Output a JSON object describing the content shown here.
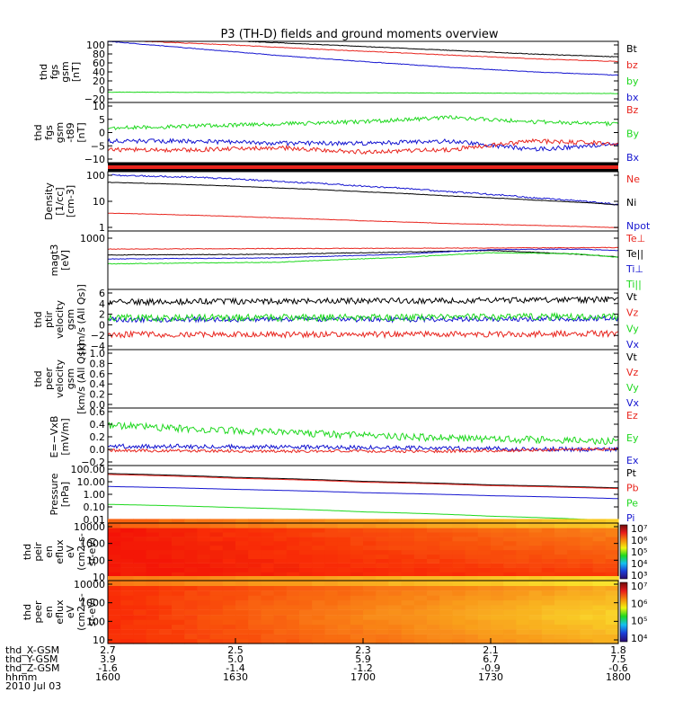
{
  "chart_data": {
    "type": "line",
    "title": "P3 (TH-D) fields and ground moments overview",
    "time_axis": {
      "ticks": [
        "1600",
        "1630",
        "1700",
        "1730",
        "1800"
      ],
      "range": [
        "1600",
        "1800"
      ],
      "date": "2010 Jul 03",
      "rows": [
        {
          "label": "thd_X-GSM",
          "values": [
            "2.7",
            "2.5",
            "2.3",
            "2.1",
            "1.8"
          ]
        },
        {
          "label": "thd_Y-GSM",
          "values": [
            "3.9",
            "5.0",
            "5.9",
            "6.7",
            "7.5"
          ]
        },
        {
          "label": "thd_Z-GSM",
          "values": [
            "-1.6",
            "-1.4",
            "-1.2",
            "-0.9",
            "-0.6"
          ]
        },
        {
          "label": "hhmm",
          "values": [
            "1600",
            "1630",
            "1700",
            "1730",
            "1800"
          ]
        }
      ]
    },
    "panels": [
      {
        "ylabel": [
          "thd",
          "fgs",
          "gsm",
          "[nT]"
        ],
        "scale": "linear",
        "ylim": [
          -25,
          105
        ],
        "yticks": [
          "100",
          "80",
          "60",
          "40",
          "20",
          "0",
          "−20"
        ],
        "grid": false,
        "legend": [
          {
            "name": "Bt",
            "color": "#000000"
          },
          {
            "name": "bz",
            "color": "#e8251e"
          },
          {
            "name": "by",
            "color": "#1ed81e"
          },
          {
            "name": "bx",
            "color": "#1515d0"
          }
        ],
        "series": [
          {
            "name": "Bt",
            "color": "#000000",
            "x": [
              0,
              25,
              50,
              75,
              100,
              120
            ],
            "y": [
              116,
              108,
              98,
              88,
              78,
              72
            ],
            "noise": 0.6
          },
          {
            "name": "bz",
            "color": "#e8251e",
            "x": [
              0,
              25,
              50,
              75,
              100,
              120
            ],
            "y": [
              108,
              99,
              88,
              78,
              68,
              62
            ],
            "noise": 0.6
          },
          {
            "name": "by",
            "color": "#1ed81e",
            "x": [
              0,
              60,
              120
            ],
            "y": [
              -3,
              -4.5,
              -6
            ],
            "noise": 0.4
          },
          {
            "name": "bx",
            "color": "#1515d0",
            "x": [
              0,
              20,
              40,
              60,
              80,
              100,
              120
            ],
            "y": [
              105,
              90,
              75,
              62,
              50,
              40,
              33
            ],
            "noise": 0.6
          }
        ]
      },
      {
        "ylabel": [
          "thd",
          "fgs",
          "gsm",
          "-t89",
          "[nT]"
        ],
        "scale": "linear",
        "ylim": [
          -13,
          15
        ],
        "yticks": [
          "10",
          "5",
          "0",
          "−5",
          "−10"
        ],
        "grid": false,
        "legend": [
          {
            "name": "Bz",
            "color": "#e8251e"
          },
          {
            "name": "By",
            "color": "#1ed81e"
          },
          {
            "name": "Bx",
            "color": "#1515d0"
          }
        ],
        "series": [
          {
            "name": "By",
            "color": "#1ed81e",
            "x": [
              0,
              20,
              40,
              60,
              80,
              100,
              120
            ],
            "y": [
              3,
              4,
              5,
              6,
              8,
              6,
              5
            ],
            "noise": 0.9
          },
          {
            "name": "Bx",
            "color": "#1515d0",
            "x": [
              0,
              20,
              40,
              60,
              80,
              100,
              120
            ],
            "y": [
              -3,
              -3,
              -4,
              -4,
              -3,
              -7,
              -4
            ],
            "noise": 1.0
          },
          {
            "name": "Bz",
            "color": "#e8251e",
            "x": [
              0,
              20,
              40,
              60,
              80,
              100,
              120
            ],
            "y": [
              -7,
              -7,
              -6,
              -8,
              -7,
              -3,
              -4
            ],
            "noise": 1.0
          }
        ]
      },
      {
        "ylabel": [
          "Density",
          "[1/cc]",
          "[cm-3]"
        ],
        "scale": "log",
        "ylim": [
          0.2,
          300
        ],
        "yticks": [
          "100",
          "10",
          "1"
        ],
        "grid": false,
        "legend": [
          {
            "name": "Ne",
            "color": "#e8251e"
          },
          {
            "name": "Ni",
            "color": "#000000"
          },
          {
            "name": "Npot",
            "color": "#1515d0"
          }
        ],
        "series": [
          {
            "name": "Npot",
            "color": "#1515d0",
            "x": [
              0,
              20,
              40,
              60,
              80,
              100,
              120
            ],
            "y": [
              200,
              150,
              90,
              50,
              25,
              12,
              5
            ],
            "noise": 0.04
          },
          {
            "name": "Ni",
            "color": "#000000",
            "x": [
              0,
              20,
              40,
              60,
              80,
              100,
              120
            ],
            "y": [
              80,
              60,
              40,
              25,
              15,
              9,
              5
            ],
            "noise": 0.01
          },
          {
            "name": "Ne",
            "color": "#e8251e",
            "x": [
              0,
              20,
              40,
              60,
              80,
              100,
              120
            ],
            "y": [
              1.8,
              1.4,
              1.0,
              0.7,
              0.5,
              0.4,
              0.3
            ],
            "noise": 0.01
          }
        ]
      },
      {
        "ylabel": [
          "magt3",
          "[eV]"
        ],
        "scale": "log",
        "ylim": [
          20,
          2000
        ],
        "yticks": [
          "1000"
        ],
        "grid": false,
        "legend": [
          {
            "name": "Te⊥",
            "color": "#e8251e"
          },
          {
            "name": "Te||",
            "color": "#000000"
          },
          {
            "name": "Ti⊥",
            "color": "#1515d0"
          },
          {
            "name": "Ti||",
            "color": "#1ed81e"
          }
        ],
        "series": [
          {
            "name": "Te⊥",
            "color": "#e8251e",
            "x": [
              0,
              40,
              80,
              120
            ],
            "y": [
              480,
              500,
              520,
              540
            ],
            "noise": 0.01
          },
          {
            "name": "Te||",
            "color": "#000000",
            "x": [
              0,
              40,
              70,
              90,
              110,
              120
            ],
            "y": [
              300,
              320,
              380,
              430,
              320,
              260
            ],
            "noise": 0.01
          },
          {
            "name": "Ti⊥",
            "color": "#1515d0",
            "x": [
              0,
              40,
              70,
              90,
              110,
              120
            ],
            "y": [
              220,
              240,
              320,
              460,
              480,
              430
            ],
            "noise": 0.01
          },
          {
            "name": "Ti||",
            "color": "#1ed81e",
            "x": [
              0,
              40,
              70,
              90,
              110,
              120
            ],
            "y": [
              150,
              170,
              250,
              360,
              330,
              250
            ],
            "noise": 0.01
          }
        ]
      },
      {
        "ylabel": [
          "thd",
          "ptir",
          "velocity",
          "gsm",
          "[km/s (All Qs)]"
        ],
        "scale": "linear",
        "ylim": [
          -6,
          6
        ],
        "yticks": [
          "6",
          "4",
          "2",
          "0",
          "−2",
          "−4"
        ],
        "grid": false,
        "legend": [
          {
            "name": "Vt",
            "color": "#000000"
          },
          {
            "name": "Vz",
            "color": "#e8251e"
          },
          {
            "name": "Vy",
            "color": "#1ed81e"
          },
          {
            "name": "Vx",
            "color": "#1515d0"
          }
        ],
        "series": [
          {
            "name": "Vt",
            "color": "#000000",
            "x": [
              0,
              60,
              120
            ],
            "y": [
              3.5,
              3.7,
              4.0
            ],
            "noise": 0.6
          },
          {
            "name": "Vx",
            "color": "#1515d0",
            "x": [
              0,
              60,
              120
            ],
            "y": [
              0,
              0,
              0.2
            ],
            "noise": 0.5
          },
          {
            "name": "Vy",
            "color": "#1ed81e",
            "x": [
              0,
              60,
              120
            ],
            "y": [
              0.3,
              0.4,
              0.6
            ],
            "noise": 0.7
          },
          {
            "name": "Vz",
            "color": "#e8251e",
            "x": [
              0,
              60,
              120
            ],
            "y": [
              -3.0,
              -3.0,
              -2.8
            ],
            "noise": 0.6
          }
        ]
      },
      {
        "ylabel": [
          "thd",
          "peer",
          "velocity",
          "gsm",
          "[km/s (All Qs)]"
        ],
        "scale": "linear",
        "ylim": [
          0,
          1
        ],
        "yticks": [
          "1.0",
          "0.8",
          "0.6",
          "0.4",
          "0.2",
          "0.0"
        ],
        "grid": false,
        "legend": [
          {
            "name": "Vt",
            "color": "#000000"
          },
          {
            "name": "Vz",
            "color": "#e8251e"
          },
          {
            "name": "Vy",
            "color": "#1ed81e"
          },
          {
            "name": "Vx",
            "color": "#1515d0"
          }
        ],
        "series": []
      },
      {
        "ylabel": [
          "E=−VxB",
          "[mV/m]"
        ],
        "scale": "linear",
        "ylim": [
          -0.2,
          0.6
        ],
        "yticks": [
          "0.6",
          "0.4",
          "0.2",
          "0.0",
          "−0.2"
        ],
        "grid": false,
        "legend": [
          {
            "name": "Ez",
            "color": "#e8251e"
          },
          {
            "name": "Ey",
            "color": "#1ed81e"
          },
          {
            "name": "Ex",
            "color": "#1515d0"
          }
        ],
        "series": [
          {
            "name": "Ey",
            "color": "#1ed81e",
            "x": [
              0,
              40,
              80,
              120
            ],
            "y": [
              0.36,
              0.26,
              0.18,
              0.14
            ],
            "noise": 0.05
          },
          {
            "name": "Ex",
            "color": "#1515d0",
            "x": [
              0,
              40,
              80,
              120
            ],
            "y": [
              0.07,
              0.06,
              0.04,
              0.02
            ],
            "noise": 0.03
          },
          {
            "name": "Ez",
            "color": "#e8251e",
            "x": [
              0,
              40,
              80,
              120
            ],
            "y": [
              0.01,
              0.0,
              0.0,
              0.03
            ],
            "noise": 0.02
          }
        ]
      },
      {
        "ylabel": [
          "Pressure",
          "[nPa]"
        ],
        "scale": "log",
        "ylim": [
          0.01,
          100
        ],
        "yticks": [
          "100.00",
          "10.00",
          "1.00",
          "0.10",
          "0.01"
        ],
        "grid": false,
        "legend": [
          {
            "name": "Pt",
            "color": "#000000"
          },
          {
            "name": "Pb",
            "color": "#e8251e"
          },
          {
            "name": "Pe",
            "color": "#1ed81e"
          },
          {
            "name": "Pi",
            "color": "#1515d0"
          }
        ],
        "series": [
          {
            "name": "Pt",
            "color": "#000000",
            "x": [
              0,
              30,
              60,
              90,
              120
            ],
            "y": [
              28,
              15,
              8,
              4.5,
              2.8
            ],
            "noise": 0.0
          },
          {
            "name": "Pb",
            "color": "#e8251e",
            "x": [
              0,
              30,
              60,
              90,
              120
            ],
            "y": [
              24,
              13,
              7,
              4,
              2.5
            ],
            "noise": 0.0
          },
          {
            "name": "Pi",
            "color": "#1515d0",
            "x": [
              0,
              30,
              60,
              90,
              120
            ],
            "y": [
              3.5,
              2.2,
              1.3,
              0.8,
              0.5
            ],
            "noise": 0.0
          },
          {
            "name": "Pe",
            "color": "#1ed81e",
            "x": [
              0,
              30,
              60,
              90,
              120
            ],
            "y": [
              0.2,
              0.12,
              0.06,
              0.03,
              0.014
            ],
            "noise": 0.0
          }
        ]
      },
      {
        "type": "heatmap",
        "ylabel": [
          "thd",
          "peir",
          "en",
          "eflux",
          "eV",
          "(cm2-s-",
          "sr-eV)"
        ],
        "scale": "log",
        "ylim": [
          5,
          20000
        ],
        "yticks": [
          "10000",
          "1000",
          "100",
          "10"
        ],
        "colorbar": {
          "min_exp": 3,
          "max_exp": 7,
          "labels": [
            "10⁷",
            "10⁶",
            "10⁵",
            "10⁴",
            "10³"
          ]
        }
      },
      {
        "type": "heatmap",
        "ylabel": [
          "thd",
          "peer",
          "en",
          "eflux",
          "eV",
          "(cm2-s-",
          "sr-eV)"
        ],
        "scale": "log",
        "ylim": [
          5,
          20000
        ],
        "yticks": [
          "10000",
          "1000",
          "100",
          "10"
        ],
        "colorbar": {
          "min_exp": 4,
          "max_exp": 7,
          "labels": [
            "10⁷",
            "10⁶",
            "10⁵",
            "10⁴"
          ]
        }
      }
    ]
  }
}
